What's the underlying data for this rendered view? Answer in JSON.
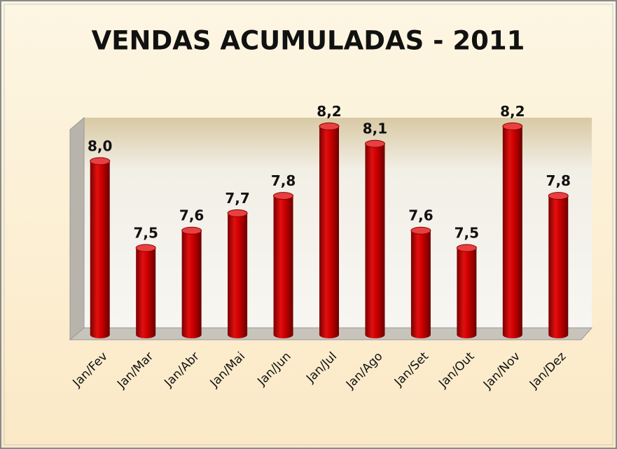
{
  "chart_data": {
    "type": "bar",
    "title": "VENDAS ACUMULADAS - 2011",
    "categories": [
      "Jan/Fev",
      "Jan/Mar",
      "Jan/Abr",
      "Jan/Mai",
      "Jan/Jun",
      "Jan/Jul",
      "Jan/Ago",
      "Jan/Set",
      "Jan/Out",
      "Jan/Nov",
      "Jan/Dez"
    ],
    "values": [
      8.0,
      7.5,
      7.6,
      7.7,
      7.8,
      8.2,
      8.1,
      7.6,
      7.5,
      8.2,
      7.8
    ],
    "value_labels": [
      "8,0",
      "7,5",
      "7,6",
      "7,7",
      "7,8",
      "8,2",
      "8,1",
      "7,6",
      "7,5",
      "8,2",
      "7,8"
    ],
    "color": "#cc0000",
    "ylim": [
      7,
      8.25
    ]
  }
}
